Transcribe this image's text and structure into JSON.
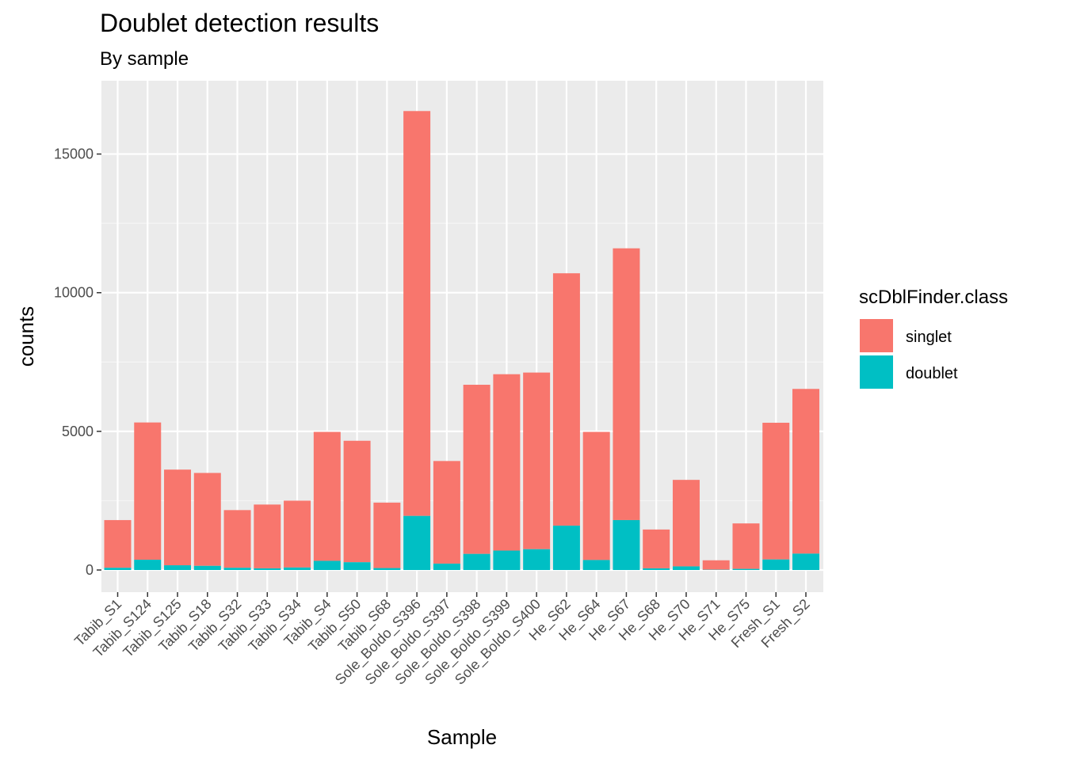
{
  "chart_data": {
    "type": "bar",
    "stacked": true,
    "title": "Doublet detection results",
    "subtitle": "By sample",
    "xlabel": "Sample",
    "ylabel": "counts",
    "ylim": [
      0,
      17300
    ],
    "yticks": [
      0,
      5000,
      10000,
      15000
    ],
    "ytick_labels": [
      "0",
      "5000",
      "10000",
      "15000"
    ],
    "categories": [
      "Tabib_S1",
      "Tabib_S124",
      "Tabib_S125",
      "Tabib_S18",
      "Tabib_S32",
      "Tabib_S33",
      "Tabib_S34",
      "Tabib_S4",
      "Tabib_S50",
      "Tabib_S68",
      "Sole_Boldo_S396",
      "Sole_Boldo_S397",
      "Sole_Boldo_S398",
      "Sole_Boldo_S399",
      "Sole_Boldo_S400",
      "He_S62",
      "He_S64",
      "He_S67",
      "He_S68",
      "He_S70",
      "He_S71",
      "He_S75",
      "Fresh_S1",
      "Fresh_S2"
    ],
    "legend": {
      "title": "scDblFinder.class",
      "position": "right"
    },
    "series": [
      {
        "name": "singlet",
        "color": "#F8766D",
        "values": [
          1720,
          4950,
          3450,
          3350,
          2080,
          2300,
          2410,
          4650,
          4380,
          2360,
          14600,
          3700,
          6100,
          6360,
          6370,
          9100,
          4620,
          9800,
          1400,
          3120,
          340,
          1640,
          4930,
          5940
        ]
      },
      {
        "name": "doublet",
        "color": "#00BFC4",
        "values": [
          80,
          370,
          170,
          150,
          80,
          60,
          90,
          330,
          280,
          70,
          1950,
          230,
          580,
          700,
          750,
          1600,
          360,
          1800,
          60,
          130,
          10,
          40,
          380,
          590
        ]
      }
    ]
  }
}
